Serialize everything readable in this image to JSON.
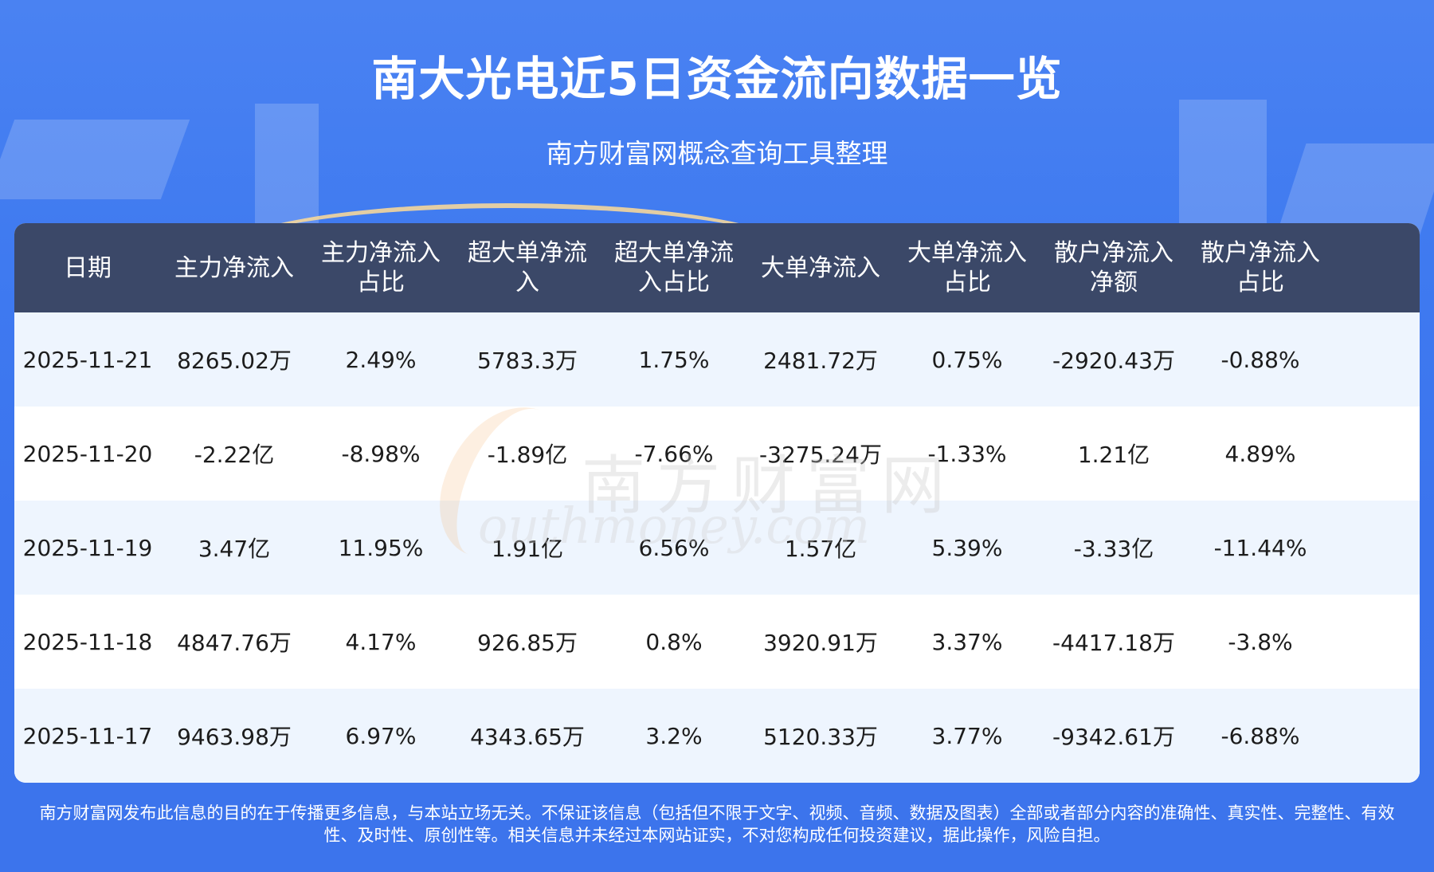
{
  "header": {
    "title": "南大光电近5日资金流向数据一览",
    "subtitle": "南方财富网概念查询工具整理"
  },
  "table": {
    "headers": [
      [
        "日期",
        ""
      ],
      [
        "主力净流入",
        ""
      ],
      [
        "主力净流入",
        "占比"
      ],
      [
        "超大单净流",
        "入"
      ],
      [
        "超大单净流",
        "入占比"
      ],
      [
        "大单净流入",
        ""
      ],
      [
        "大单净流入",
        "占比"
      ],
      [
        "散户净流入",
        "净额"
      ],
      [
        "散户净流入",
        "占比"
      ]
    ],
    "rows": [
      [
        "2025-11-21",
        "8265.02万",
        "2.49%",
        "5783.3万",
        "1.75%",
        "2481.72万",
        "0.75%",
        "-2920.43万",
        "-0.88%"
      ],
      [
        "2025-11-20",
        "-2.22亿",
        "-8.98%",
        "-1.89亿",
        "-7.66%",
        "-3275.24万",
        "-1.33%",
        "1.21亿",
        "4.89%"
      ],
      [
        "2025-11-19",
        "3.47亿",
        "11.95%",
        "1.91亿",
        "6.56%",
        "1.57亿",
        "5.39%",
        "-3.33亿",
        "-11.44%"
      ],
      [
        "2025-11-18",
        "4847.76万",
        "4.17%",
        "926.85万",
        "0.8%",
        "3920.91万",
        "3.37%",
        "-4417.18万",
        "-3.8%"
      ],
      [
        "2025-11-17",
        "9463.98万",
        "6.97%",
        "4343.65万",
        "3.2%",
        "5120.33万",
        "3.77%",
        "-9342.61万",
        "-6.88%"
      ]
    ]
  },
  "watermark": {
    "cn": "南方财富网",
    "en": "outhmoney.com"
  },
  "footer": {
    "line1": "南方财富网发布此信息的目的在于传播更多信息，与本站立场无关。不保证该信息（包括但不限于文字、视频、音频、数据及图表）全部或者部分内容的准确性、真实性、完整性、有效",
    "line2": "性、及时性、原创性等。相关信息并未经过本网站证实，不对您构成任何投资建议，据此操作，风险自担。"
  }
}
